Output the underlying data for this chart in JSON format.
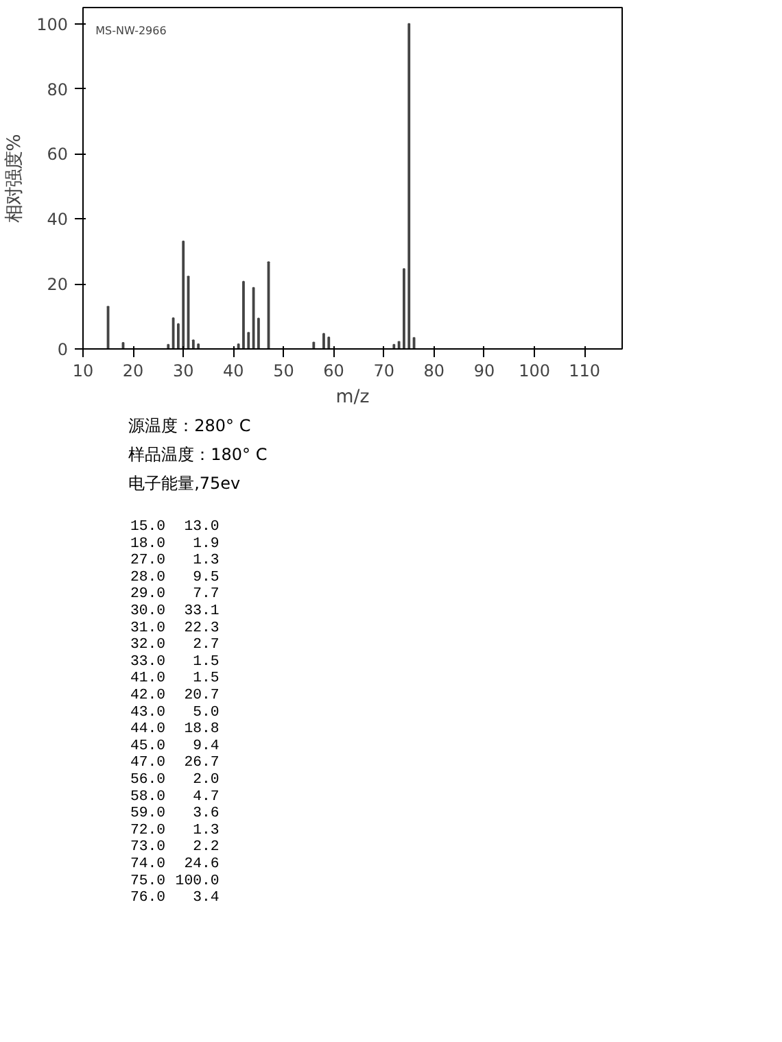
{
  "chart_data": [
    {
      "type": "bar",
      "xlabel": "m/z",
      "ylabel": "相对强度%",
      "x": [
        15,
        18,
        27,
        28,
        29,
        30,
        31,
        32,
        33,
        41,
        42,
        43,
        44,
        45,
        47,
        56,
        58,
        59,
        72,
        73,
        74,
        75,
        76
      ],
      "values": [
        13.0,
        1.9,
        1.3,
        9.5,
        7.7,
        33.1,
        22.3,
        2.7,
        1.5,
        1.5,
        20.7,
        5.0,
        18.8,
        9.4,
        26.7,
        2.0,
        4.7,
        3.6,
        1.3,
        2.2,
        24.6,
        100.0,
        3.4
      ],
      "color": "#444444",
      "xlim": [
        10,
        117.5
      ],
      "ylim": [
        0,
        105
      ],
      "xticks": [
        10,
        20,
        30,
        40,
        50,
        60,
        70,
        80,
        90,
        100,
        110
      ],
      "yticks": [
        0,
        20,
        40,
        60,
        80,
        100
      ],
      "annotations": [
        "MS-NW-2966"
      ]
    },
    {
      "type": "other",
      "annotations": [
        "源温度：280° C",
        "样品温度：180° C",
        "电子能量,75ev",
        "15.0",
        "13.0",
        "18.0",
        "1.9",
        "27.0",
        "1.3",
        "28.0",
        "9.5",
        "29.0",
        "7.7",
        "30.0",
        "33.1",
        "31.0",
        "22.3",
        "32.0",
        "2.7",
        "33.0",
        "1.5",
        "41.0",
        "1.5",
        "42.0",
        "20.7",
        "43.0",
        "5.0",
        "44.0",
        "18.8",
        "45.0",
        "9.4",
        "47.0",
        "26.7",
        "56.0",
        "2.0",
        "58.0",
        "4.7",
        "59.0",
        "3.6",
        "72.0",
        "1.3",
        "73.0",
        "2.2",
        "74.0",
        "24.6",
        "75.0",
        "100.0",
        "76.0",
        "3.4"
      ]
    }
  ]
}
